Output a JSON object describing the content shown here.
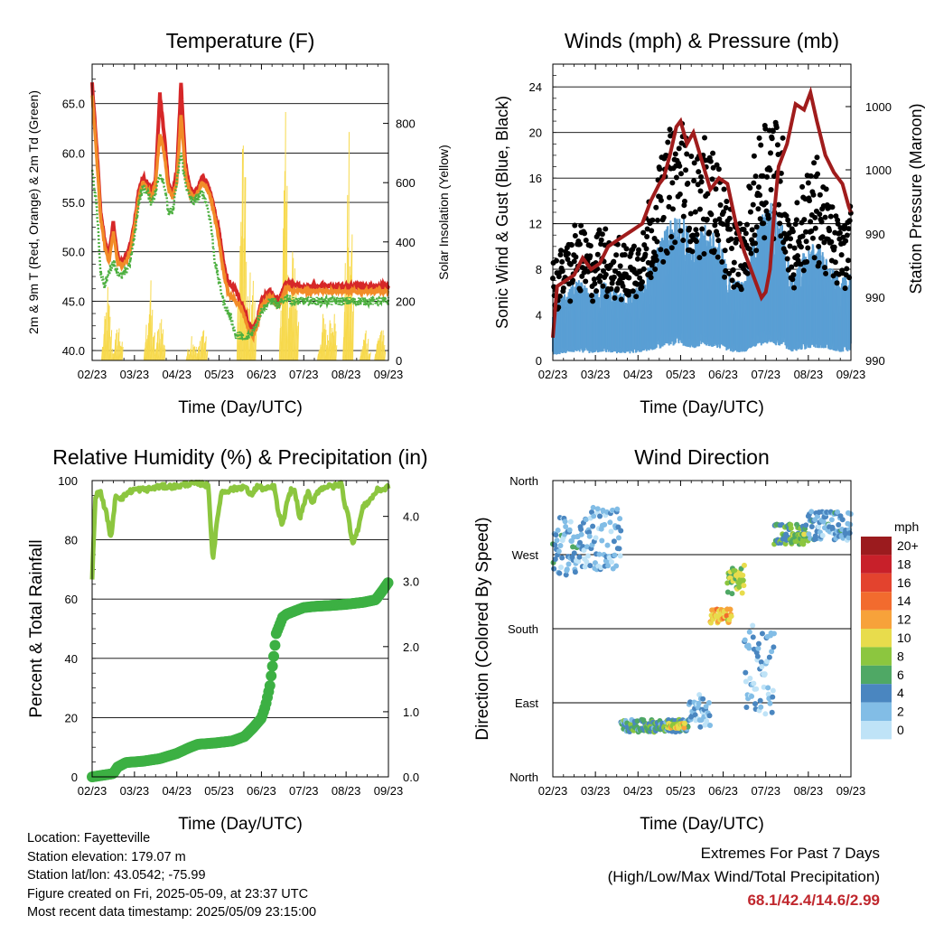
{
  "x_ticks": [
    "02/23",
    "03/23",
    "04/23",
    "05/23",
    "06/23",
    "07/23",
    "08/23",
    "09/23"
  ],
  "x_label": "Time (Day/UTC)",
  "colors": {
    "temp2m": "#d62728",
    "temp9m": "#f28c28",
    "dewpoint": "#4caf3f",
    "solar": "#f7d94c",
    "gust": "#000000",
    "wind": "#5a9fd4",
    "pressure": "#a01c1c",
    "rh": "#8cc63f",
    "precip": "#3cb043",
    "accent": "#c0272d"
  },
  "chart_data": [
    {
      "id": "temperature",
      "type": "line",
      "title": "Temperature (F)",
      "xlabel": "Time (Day/UTC)",
      "ylabel": "2m & 9m T (Red, Orange) & 2m Td (Green)",
      "y2label": "Solar Insolation (Yellow)",
      "ylim": [
        39,
        69
      ],
      "yticks": [
        "40.0",
        "45.0",
        "50.0",
        "55.0",
        "60.0",
        "65.0"
      ],
      "y2lim": [
        0,
        1000
      ],
      "y2ticks": [
        "0",
        "200",
        "400",
        "600",
        "800"
      ],
      "x": [
        0,
        0.1,
        0.2,
        0.3,
        0.4,
        0.5,
        0.6,
        0.7,
        0.8,
        0.9,
        1,
        1.1,
        1.2,
        1.3,
        1.4,
        1.5,
        1.6,
        1.7,
        1.8,
        1.9,
        2,
        2.1,
        2.2,
        2.3,
        2.4,
        2.5,
        2.6,
        2.7,
        2.8,
        2.9,
        3,
        3.1,
        3.2,
        3.3,
        3.4,
        3.5,
        3.6,
        3.7,
        3.8,
        3.9,
        4,
        4.1,
        4.2,
        4.3,
        4.4,
        4.5,
        4.6,
        4.7,
        4.8,
        4.9,
        5,
        5.1,
        5.2,
        5.3,
        5.4,
        5.5,
        5.6,
        5.7,
        5.8,
        5.9,
        6,
        6.1,
        6.2,
        6.3,
        6.4,
        6.5,
        6.6,
        6.7,
        6.8,
        6.9,
        7
      ],
      "series": [
        {
          "name": "2m T",
          "color": "#d62728",
          "values": [
            67,
            61,
            54,
            51,
            49.5,
            53,
            49.5,
            49,
            49.5,
            50.5,
            53,
            56,
            57.5,
            57,
            56,
            57.5,
            66,
            62,
            57,
            56,
            58,
            67,
            59,
            56.5,
            56,
            56.5,
            57.5,
            57,
            56,
            54,
            52,
            49,
            47,
            46.5,
            46,
            45,
            44,
            42.5,
            42,
            43,
            45,
            45.5,
            46,
            45.5,
            45,
            46,
            47,
            46.5,
            46.5,
            46.5,
            46.5,
            46.5,
            46.5,
            46.5,
            46.5,
            46.5,
            46.5,
            46.5,
            46.5,
            46.5,
            46.5,
            46.5,
            46.5,
            46.5,
            46.5,
            46.5,
            46.5,
            46.5,
            46.5,
            46.5,
            46.5
          ]
        },
        {
          "name": "9m T",
          "color": "#f28c28",
          "values": [
            66,
            60,
            53.5,
            50.5,
            49,
            52,
            49,
            48.5,
            49,
            50,
            52.5,
            55.5,
            57,
            56.5,
            55.5,
            57,
            62,
            60,
            56.5,
            55.5,
            57,
            64,
            58,
            56,
            55.5,
            56,
            57,
            56.5,
            55.5,
            53.5,
            51,
            48,
            46,
            45.5,
            45,
            44.5,
            43.5,
            42,
            41.5,
            42.5,
            44.5,
            45,
            45.5,
            45,
            44.5,
            45.5,
            46.5,
            46,
            46,
            46,
            46,
            46,
            46,
            46,
            46,
            46,
            46,
            46,
            46,
            46,
            46,
            46,
            46,
            46,
            46,
            46,
            46,
            46,
            46,
            46,
            46
          ]
        },
        {
          "name": "2m Td",
          "color": "#4caf3f",
          "values": [
            58,
            55,
            48,
            46.5,
            48,
            49,
            48,
            47.5,
            48,
            49,
            51.5,
            55,
            56.5,
            56,
            55,
            56,
            58,
            57,
            54,
            54,
            57,
            60,
            57,
            55.5,
            55,
            55.5,
            56,
            55,
            53,
            49,
            47,
            45,
            44,
            43,
            41.5,
            41.5,
            41,
            41.5,
            42,
            43,
            44,
            44.5,
            45,
            45,
            44.5,
            45,
            45.5,
            45,
            45,
            45,
            45,
            45,
            45,
            45,
            45,
            45,
            45,
            45,
            45,
            45,
            45,
            45,
            45,
            45,
            45,
            45,
            45,
            45,
            45,
            45,
            45
          ]
        }
      ],
      "solar_peaks": [
        {
          "day": 0.35,
          "value": 270
        },
        {
          "day": 0.6,
          "value": 150
        },
        {
          "day": 1.35,
          "value": 310
        },
        {
          "day": 1.6,
          "value": 200
        },
        {
          "day": 2.35,
          "value": 120
        },
        {
          "day": 2.6,
          "value": 150
        },
        {
          "day": 3.55,
          "value": 930
        },
        {
          "day": 3.75,
          "value": 400
        },
        {
          "day": 4.55,
          "value": 840
        },
        {
          "day": 4.75,
          "value": 500
        },
        {
          "day": 5.45,
          "value": 180
        },
        {
          "day": 5.65,
          "value": 280
        },
        {
          "day": 6.05,
          "value": 780
        },
        {
          "day": 6.45,
          "value": 130
        },
        {
          "day": 6.8,
          "value": 160
        }
      ]
    },
    {
      "id": "winds",
      "type": "scatter",
      "title": "Winds (mph) & Pressure (mb)",
      "xlabel": "Time (Day/UTC)",
      "ylabel": "Sonic Wind & Gust (Blue, Black)",
      "y2label": "Station Pressure (Maroon)",
      "ylim": [
        0,
        26
      ],
      "yticks": [
        "0",
        "4",
        "8",
        "12",
        "16",
        "20",
        "24"
      ],
      "y2ticks": [
        "990",
        "990",
        "990",
        "990",
        "1000",
        "1000"
      ],
      "pressure_trace": [
        [
          0,
          2
        ],
        [
          0.1,
          6.5
        ],
        [
          0.3,
          7
        ],
        [
          0.5,
          7.5
        ],
        [
          0.7,
          9
        ],
        [
          0.9,
          8
        ],
        [
          1.1,
          8.5
        ],
        [
          1.3,
          10
        ],
        [
          1.5,
          10.5
        ],
        [
          1.7,
          11
        ],
        [
          1.9,
          11.5
        ],
        [
          2.1,
          12
        ],
        [
          2.3,
          14
        ],
        [
          2.5,
          15.5
        ],
        [
          2.6,
          16
        ],
        [
          2.75,
          18
        ],
        [
          2.9,
          20.5
        ],
        [
          3.0,
          21
        ],
        [
          3.15,
          19
        ],
        [
          3.3,
          20
        ],
        [
          3.5,
          17.5
        ],
        [
          3.7,
          15
        ],
        [
          3.9,
          16
        ],
        [
          4.1,
          15.5
        ],
        [
          4.3,
          12
        ],
        [
          4.5,
          9.5
        ],
        [
          4.6,
          8.5
        ],
        [
          4.8,
          6.5
        ],
        [
          4.9,
          5.5
        ],
        [
          5.0,
          6
        ],
        [
          5.1,
          8
        ],
        [
          5.2,
          13
        ],
        [
          5.3,
          17
        ],
        [
          5.5,
          19
        ],
        [
          5.7,
          22.5
        ],
        [
          5.9,
          22
        ],
        [
          6.05,
          23.5
        ],
        [
          6.2,
          21
        ],
        [
          6.4,
          18
        ],
        [
          6.6,
          16.5
        ],
        [
          6.8,
          15.5
        ],
        [
          6.95,
          13.5
        ],
        [
          7,
          13
        ]
      ]
    },
    {
      "id": "humidity",
      "type": "line",
      "title": "Relative Humidity (%) & Precipitation (in)",
      "xlabel": "Time (Day/UTC)",
      "ylabel": "Percent & Total Rainfall",
      "ylim": [
        0,
        100
      ],
      "yticks": [
        "0",
        "20",
        "40",
        "60",
        "80",
        "100"
      ],
      "y2lim": [
        0,
        4.55
      ],
      "y2ticks": [
        "0.0",
        "1.0",
        "2.0",
        "3.0",
        "4.0"
      ],
      "series": [
        {
          "name": "RH",
          "color": "#8cc63f",
          "points": [
            [
              0,
              67
            ],
            [
              0.08,
              95
            ],
            [
              0.2,
              96
            ],
            [
              0.35,
              88
            ],
            [
              0.45,
              80
            ],
            [
              0.55,
              95
            ],
            [
              0.7,
              94
            ],
            [
              0.85,
              96
            ],
            [
              1.0,
              97
            ],
            [
              1.3,
              97
            ],
            [
              1.6,
              98
            ],
            [
              2.0,
              98
            ],
            [
              2.3,
              99
            ],
            [
              2.6,
              99
            ],
            [
              2.75,
              98
            ],
            [
              2.8,
              85
            ],
            [
              2.85,
              73
            ],
            [
              2.95,
              86
            ],
            [
              3.05,
              96
            ],
            [
              3.3,
              97
            ],
            [
              3.6,
              98
            ],
            [
              3.75,
              95
            ],
            [
              3.9,
              98
            ],
            [
              4.1,
              97
            ],
            [
              4.3,
              98
            ],
            [
              4.4,
              89
            ],
            [
              4.5,
              85
            ],
            [
              4.6,
              92
            ],
            [
              4.7,
              97
            ],
            [
              4.8,
              96
            ],
            [
              4.9,
              87
            ],
            [
              5.0,
              92
            ],
            [
              5.1,
              96
            ],
            [
              5.2,
              92
            ],
            [
              5.3,
              96
            ],
            [
              5.5,
              98
            ],
            [
              5.7,
              98
            ],
            [
              5.9,
              99
            ],
            [
              5.95,
              93
            ],
            [
              6.05,
              88
            ],
            [
              6.15,
              79
            ],
            [
              6.25,
              82
            ],
            [
              6.4,
              91
            ],
            [
              6.6,
              94
            ],
            [
              6.75,
              97
            ],
            [
              6.9,
              97
            ],
            [
              7.0,
              98
            ]
          ]
        },
        {
          "name": "Total Rainfall",
          "color": "#3cb043",
          "points": [
            [
              0,
              0
            ],
            [
              0.2,
              0.02
            ],
            [
              0.5,
              0.05
            ],
            [
              0.6,
              0.15
            ],
            [
              0.8,
              0.22
            ],
            [
              1.2,
              0.24
            ],
            [
              1.6,
              0.28
            ],
            [
              2.0,
              0.36
            ],
            [
              2.3,
              0.45
            ],
            [
              2.5,
              0.5
            ],
            [
              2.9,
              0.52
            ],
            [
              3.3,
              0.55
            ],
            [
              3.6,
              0.62
            ],
            [
              3.8,
              0.75
            ],
            [
              4.0,
              0.9
            ],
            [
              4.1,
              1.1
            ],
            [
              4.2,
              1.4
            ],
            [
              4.3,
              1.9
            ],
            [
              4.35,
              2.2
            ],
            [
              4.5,
              2.45
            ],
            [
              4.6,
              2.5
            ],
            [
              4.8,
              2.55
            ],
            [
              5.0,
              2.6
            ],
            [
              5.3,
              2.62
            ],
            [
              5.6,
              2.63
            ],
            [
              6.0,
              2.65
            ],
            [
              6.4,
              2.68
            ],
            [
              6.7,
              2.72
            ],
            [
              6.85,
              2.85
            ],
            [
              7,
              2.99
            ]
          ]
        }
      ]
    },
    {
      "id": "wind_direction",
      "type": "scatter",
      "title": "Wind Direction",
      "xlabel": "Time (Day/UTC)",
      "ylabel": "Direction (Colored By Speed)",
      "yticks": [
        "North",
        "East",
        "South",
        "West",
        "North"
      ],
      "colorbar": {
        "unit": "mph",
        "levels": [
          "20+",
          "18",
          "16",
          "14",
          "12",
          "10",
          "8",
          "6",
          "4",
          "2",
          "0"
        ],
        "colors": [
          "#9b1b1e",
          "#c8202a",
          "#e3432e",
          "#f26b2e",
          "#f7a23a",
          "#e8dc4c",
          "#8cc63f",
          "#4fa865",
          "#4a86c0",
          "#82bde6",
          "#bfe3f7"
        ]
      }
    }
  ],
  "info": {
    "location": "Location: Fayetteville",
    "elevation": "Station elevation: 179.07 m",
    "latlon": "Station lat/lon: 43.0542; -75.99",
    "created": "Figure created on Fri, 2025-05-09, at 23:37 UTC",
    "recent": "Most recent data timestamp: 2025/05/09 23:15:00"
  },
  "extremes": {
    "title": "Extremes For Past 7 Days",
    "subtitle": "(High/Low/Max Wind/Total Precipitation)",
    "values": "68.1/42.4/14.6/2.99"
  }
}
